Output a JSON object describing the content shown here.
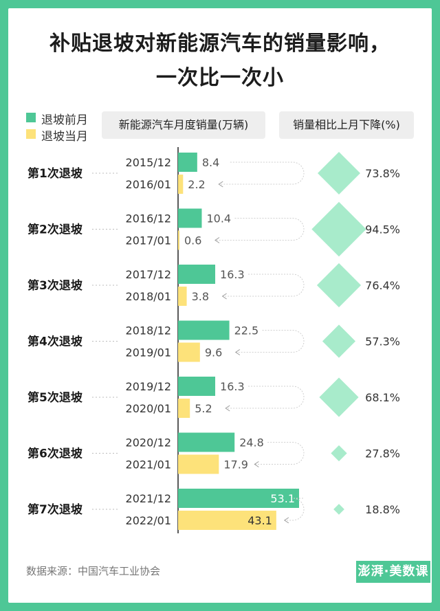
{
  "title": {
    "line1": "补贴退坡对新能源汽车的销量影响，",
    "line2": "一次比一次小"
  },
  "legend": [
    {
      "label": "退坡前月",
      "color": "#4ec796"
    },
    {
      "label": "退坡当月",
      "color": "#fde27a"
    }
  ],
  "headers": {
    "sales": "新能源汽车月度销量(万辆)",
    "decline": "销量相比上月下降(%)"
  },
  "source": "数据来源：中国汽车工业协会",
  "logo": "澎湃·美数课",
  "colors": {
    "before": "#4ec796",
    "current": "#fde27a",
    "diamond": "#a8ebcb",
    "background": "#4ec796"
  },
  "chart_data": {
    "type": "bar",
    "orientation": "horizontal",
    "unit": "万辆",
    "groups": [
      {
        "label": "第1次退坡",
        "before": {
          "month": "2015/12",
          "value": 8.4
        },
        "current": {
          "month": "2016/01",
          "value": 2.2
        },
        "decline": "73.8%",
        "decline_value": 73.8
      },
      {
        "label": "第2次退坡",
        "before": {
          "month": "2016/12",
          "value": 10.4
        },
        "current": {
          "month": "2017/01",
          "value": 0.6
        },
        "decline": "94.5%",
        "decline_value": 94.5
      },
      {
        "label": "第3次退坡",
        "before": {
          "month": "2017/12",
          "value": 16.3
        },
        "current": {
          "month": "2018/01",
          "value": 3.8
        },
        "decline": "76.4%",
        "decline_value": 76.4
      },
      {
        "label": "第4次退坡",
        "before": {
          "month": "2018/12",
          "value": 22.5
        },
        "current": {
          "month": "2019/01",
          "value": 9.6
        },
        "decline": "57.3%",
        "decline_value": 57.3
      },
      {
        "label": "第5次退坡",
        "before": {
          "month": "2019/12",
          "value": 16.3
        },
        "current": {
          "month": "2020/01",
          "value": 5.2
        },
        "decline": "68.1%",
        "decline_value": 68.1
      },
      {
        "label": "第6次退坡",
        "before": {
          "month": "2020/12",
          "value": 24.8
        },
        "current": {
          "month": "2021/01",
          "value": 17.9
        },
        "decline": "27.8%",
        "decline_value": 27.8
      },
      {
        "label": "第7次退坡",
        "before": {
          "month": "2021/12",
          "value": 53.1
        },
        "current": {
          "month": "2022/01",
          "value": 43.1
        },
        "decline": "18.8%",
        "decline_value": 18.8
      }
    ]
  }
}
